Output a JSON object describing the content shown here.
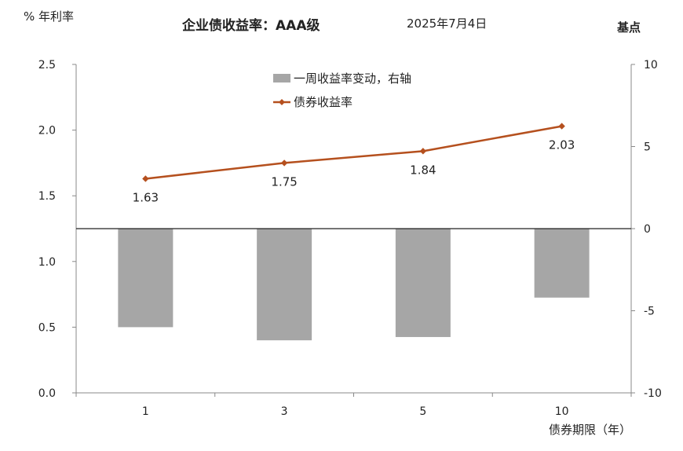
{
  "header": {
    "left_unit": "% 年利率",
    "title": "企业债收益率：AAA级",
    "date": "2025年7月4日",
    "right_unit": "基点"
  },
  "chart_data": {
    "type": "bar+line",
    "categories": [
      "1",
      "3",
      "5",
      "10"
    ],
    "series": [
      {
        "name": "一周收益率变动，右轴",
        "type": "bar",
        "axis": "right",
        "color": "#a6a6a6",
        "values": [
          -6.0,
          -6.8,
          -6.6,
          -4.2
        ]
      },
      {
        "name": "债券收益率",
        "type": "line",
        "axis": "left",
        "color": "#b5501e",
        "values": [
          1.63,
          1.75,
          1.84,
          2.03
        ],
        "labels": [
          "1.63",
          "1.75",
          "1.84",
          "2.03"
        ]
      }
    ],
    "ylim_left": [
      0,
      2.5
    ],
    "yticks_left": [
      "0.0",
      "0.5",
      "1.0",
      "1.5",
      "2.0",
      "2.5"
    ],
    "ylim_right": [
      -10,
      10
    ],
    "yticks_right": [
      "-10",
      "-5",
      "0",
      "5",
      "10"
    ],
    "xlabel": "债券期限（年）",
    "legend_position": "top-center"
  }
}
